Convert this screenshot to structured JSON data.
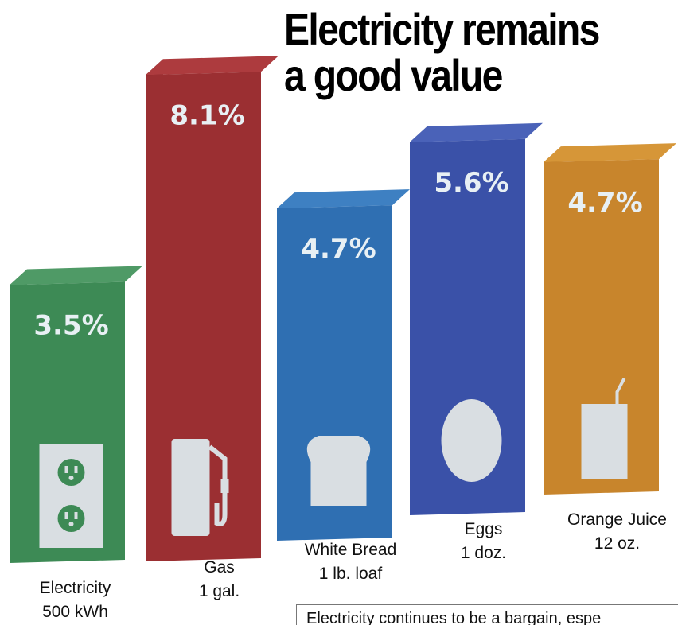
{
  "chart_data": {
    "type": "bar",
    "title": "Electricity remains a good value",
    "title_lines": [
      "Electricity remains",
      "a good value"
    ],
    "categories": [
      "Electricity 500 kWh",
      "Gas 1 gal.",
      "White Bread 1 lb. loaf",
      "Eggs 1 doz.",
      "Orange Juice 12 oz."
    ],
    "category_lines": [
      [
        "Electricity",
        "500 kWh"
      ],
      [
        "Gas",
        "1 gal."
      ],
      [
        "White Bread",
        "1 lb. loaf"
      ],
      [
        "Eggs",
        "1 doz."
      ],
      [
        "Orange Juice",
        "12 oz."
      ]
    ],
    "values": [
      3.5,
      8.1,
      4.7,
      5.6,
      4.7
    ],
    "value_labels": [
      "3.5%",
      "8.1%",
      "4.7%",
      "5.6%",
      "4.7%"
    ],
    "icons": [
      "outlet-icon",
      "gas-pump-icon",
      "bread-icon",
      "egg-icon",
      "juice-box-icon"
    ],
    "colors": [
      {
        "front": "#3d8a55",
        "side": "#2c6b40",
        "top": "#4f9a66"
      },
      {
        "front": "#9b2f32",
        "side": "#6e1f22",
        "top": "#ad3b3e"
      },
      {
        "front": "#2f6fb2",
        "side": "#244f88",
        "top": "#3e80c2"
      },
      {
        "front": "#3a51a8",
        "side": "#293b80",
        "top": "#4a62b8"
      },
      {
        "front": "#c8852c",
        "side": "#a0661c",
        "top": "#d69638"
      }
    ],
    "icon_color": "#d9dee2",
    "xlabel": "",
    "ylabel": "",
    "grid": false,
    "legend": "none"
  },
  "caption": "Electricity continues to be a bargain, espe"
}
